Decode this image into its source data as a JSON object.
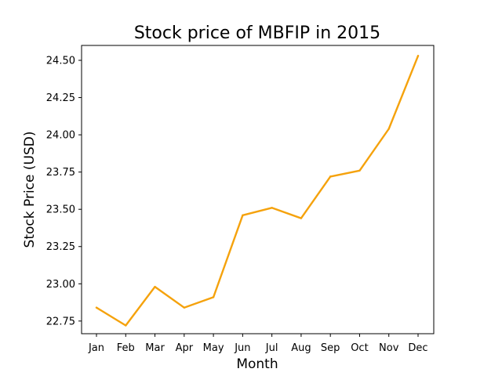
{
  "chart_data": {
    "type": "line",
    "title": "Stock price of MBFIP in 2015",
    "xlabel": "Month",
    "ylabel": "Stock Price (USD)",
    "categories": [
      "Jan",
      "Feb",
      "Mar",
      "Apr",
      "May",
      "Jun",
      "Jul",
      "Aug",
      "Sep",
      "Oct",
      "Nov",
      "Dec"
    ],
    "series": [
      {
        "values": [
          22.84,
          22.72,
          22.98,
          22.84,
          22.91,
          23.46,
          23.51,
          23.44,
          23.72,
          23.76,
          24.04,
          24.53
        ],
        "color": "#f5a20c"
      }
    ],
    "ylim": [
      22.665,
      24.6
    ],
    "yticks": [
      22.75,
      23.0,
      23.25,
      23.5,
      23.75,
      24.0,
      24.25,
      24.5
    ],
    "ytick_labels": [
      "22.75",
      "23.00",
      "23.25",
      "23.50",
      "23.75",
      "24.00",
      "24.25",
      "24.50"
    ],
    "grid": false,
    "legend": "none"
  }
}
